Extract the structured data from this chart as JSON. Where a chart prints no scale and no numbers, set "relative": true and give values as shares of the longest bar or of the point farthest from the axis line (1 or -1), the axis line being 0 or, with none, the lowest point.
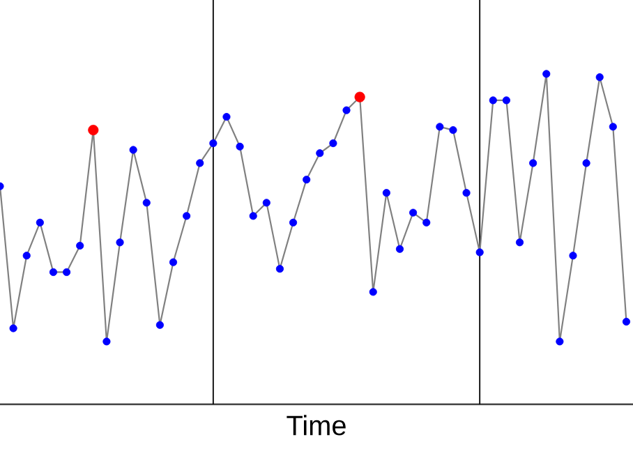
{
  "chart_data": {
    "type": "line",
    "relative": true,
    "xlabel": "Time",
    "tick_labels": false,
    "categories": [
      null,
      null,
      null,
      null,
      null,
      null,
      null,
      null,
      null,
      null,
      null,
      null,
      null,
      null,
      null,
      null,
      null,
      null,
      null,
      null,
      null,
      null,
      null,
      null,
      null,
      null,
      null,
      null,
      null,
      null,
      null,
      null,
      null,
      null,
      null,
      null,
      null,
      null,
      null,
      null,
      null,
      null,
      null,
      null,
      null,
      null,
      null,
      null
    ],
    "series": [
      {
        "color": "#808080",
        "marker": "circle",
        "values": [
          0.66,
          0.23,
          0.45,
          0.55,
          0.4,
          0.4,
          0.48,
          0.83,
          0.19,
          0.49,
          0.77,
          0.61,
          0.24,
          0.43,
          0.57,
          0.73,
          0.79,
          0.87,
          0.78,
          0.57,
          0.61,
          0.41,
          0.55,
          0.68,
          0.76,
          0.79,
          0.89,
          0.93,
          0.34,
          0.64,
          0.47,
          0.58,
          0.55,
          0.84,
          0.83,
          0.64,
          0.46,
          0.92,
          0.92,
          0.49,
          0.73,
          1.0,
          0.19,
          0.45,
          0.73,
          0.99,
          0.84,
          0.25
        ],
        "colors": [
          "#0000ff",
          "#0000ff",
          "#0000ff",
          "#0000ff",
          "#0000ff",
          "#0000ff",
          "#0000ff",
          "#ff0000",
          "#0000ff",
          "#0000ff",
          "#0000ff",
          "#0000ff",
          "#0000ff",
          "#0000ff",
          "#0000ff",
          "#0000ff",
          "#0000ff",
          "#0000ff",
          "#0000ff",
          "#0000ff",
          "#0000ff",
          "#0000ff",
          "#0000ff",
          "#0000ff",
          "#0000ff",
          "#0000ff",
          "#0000ff",
          "#ff0000",
          "#0000ff",
          "#0000ff",
          "#0000ff",
          "#0000ff",
          "#0000ff",
          "#0000ff",
          "#0000ff",
          "#0000ff",
          "#0000ff",
          "#0000ff",
          "#0000ff",
          "#0000ff",
          "#0000ff",
          "#0000ff",
          "#0000ff",
          "#0000ff",
          "#0000ff",
          "#0000ff",
          "#0000ff",
          "#0000ff"
        ]
      }
    ]
  }
}
